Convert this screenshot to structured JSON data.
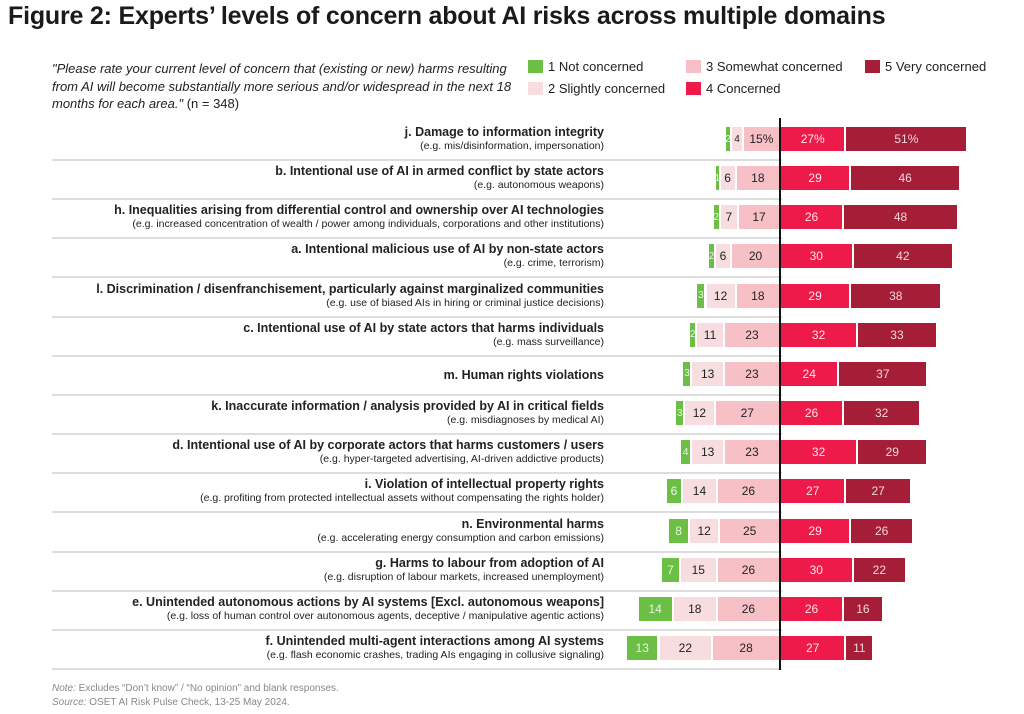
{
  "title": "Figure 2: Experts’ levels of concern about AI risks across multiple domains",
  "question": {
    "quote": "\"Please rate your current level of concern that (existing or new) harms resulting from AI will become substantially more serious and/or widespread in the next 18 months for each area.\"",
    "n": " (n = 348)"
  },
  "legend": [
    {
      "label": "1 Not concerned",
      "color": "#6cbf45"
    },
    {
      "label": "2 Slightly concerned",
      "color": "#f7dde0"
    },
    {
      "label": "3 Somewhat concerned",
      "color": "#f7c0c7"
    },
    {
      "label": "4 Concerned",
      "color": "#ee1a4a"
    },
    {
      "label": "5 Very concerned",
      "color": "#a51d37"
    }
  ],
  "chart_data": {
    "type": "bar",
    "subtype": "diverging stacked horizontal",
    "unit": "%",
    "series_labels": [
      "1 Not concerned",
      "2 Slightly concerned",
      "3 Somewhat concerned",
      "4 Concerned",
      "5 Very concerned"
    ],
    "rows": [
      {
        "title": "j. Damage to information integrity",
        "sub": "(e.g. mis/disinformation, impersonation)",
        "values": [
          2,
          4,
          15,
          27,
          51
        ]
      },
      {
        "title": "b. Intentional use of AI in armed conflict by state actors",
        "sub": "(e.g. autonomous weapons)",
        "values": [
          1,
          6,
          18,
          29,
          46
        ]
      },
      {
        "title": "h. Inequalities arising from differential control and ownership over AI technologies",
        "sub": "(e.g. increased concentration of wealth / power among individuals, corporations and other institutions)",
        "values": [
          2,
          7,
          17,
          26,
          48
        ]
      },
      {
        "title": "a. Intentional malicious use of AI by non-state actors",
        "sub": "(e.g. crime, terrorism)",
        "values": [
          2,
          6,
          20,
          30,
          42
        ]
      },
      {
        "title": "l. Discrimination / disenfranchisement, particularly against marginalized communities",
        "sub": "(e.g. use of biased AIs in hiring or criminal justice decisions)",
        "values": [
          3,
          12,
          18,
          29,
          38
        ]
      },
      {
        "title": "c. Intentional use of AI by state actors that harms individuals",
        "sub": "(e.g. mass surveillance)",
        "values": [
          2,
          11,
          23,
          32,
          33
        ]
      },
      {
        "title": "m. Human rights violations",
        "sub": "",
        "values": [
          3,
          13,
          23,
          24,
          37
        ]
      },
      {
        "title": "k. Inaccurate information / analysis provided by AI in critical fields",
        "sub": "(e.g. misdiagnoses by medical AI)",
        "values": [
          3,
          12,
          27,
          26,
          32
        ]
      },
      {
        "title": "d. Intentional use of AI by corporate actors that harms customers / users",
        "sub": "(e.g. hyper-targeted advertising, AI-driven addictive products)",
        "values": [
          4,
          13,
          23,
          32,
          29
        ]
      },
      {
        "title": "i. Violation of intellectual property rights",
        "sub": "(e.g. profiting from protected intellectual assets without compensating the rights holder)",
        "values": [
          6,
          14,
          26,
          27,
          27
        ]
      },
      {
        "title": "n. Environmental harms",
        "sub": "(e.g. accelerating energy consumption and carbon emissions)",
        "values": [
          8,
          12,
          25,
          29,
          26
        ]
      },
      {
        "title": "g. Harms to labour from adoption of AI",
        "sub": "(e.g. disruption of labour markets, increased unemployment)",
        "values": [
          7,
          15,
          26,
          30,
          22
        ]
      },
      {
        "title": "e. Unintended autonomous actions by AI systems [Excl. autonomous weapons]",
        "sub": "(e.g. loss of human control over autonomous agents, deceptive / manipulative agentic actions)",
        "values": [
          14,
          18,
          26,
          26,
          16
        ]
      },
      {
        "title": "f. Unintended multi-agent interactions among AI systems",
        "sub": "(e.g. flash economic crashes, trading AIs engaging in collusive signaling)",
        "values": [
          13,
          22,
          28,
          27,
          11
        ]
      }
    ],
    "first_row_percent_labels": true
  },
  "note": {
    "label": "Note:",
    "text": " Excludes “Don’t know” / “No opinion” and blank responses."
  },
  "source": {
    "label": "Source:",
    "text": " OSET AI Risk Pulse Check, 13-25 May 2024."
  }
}
